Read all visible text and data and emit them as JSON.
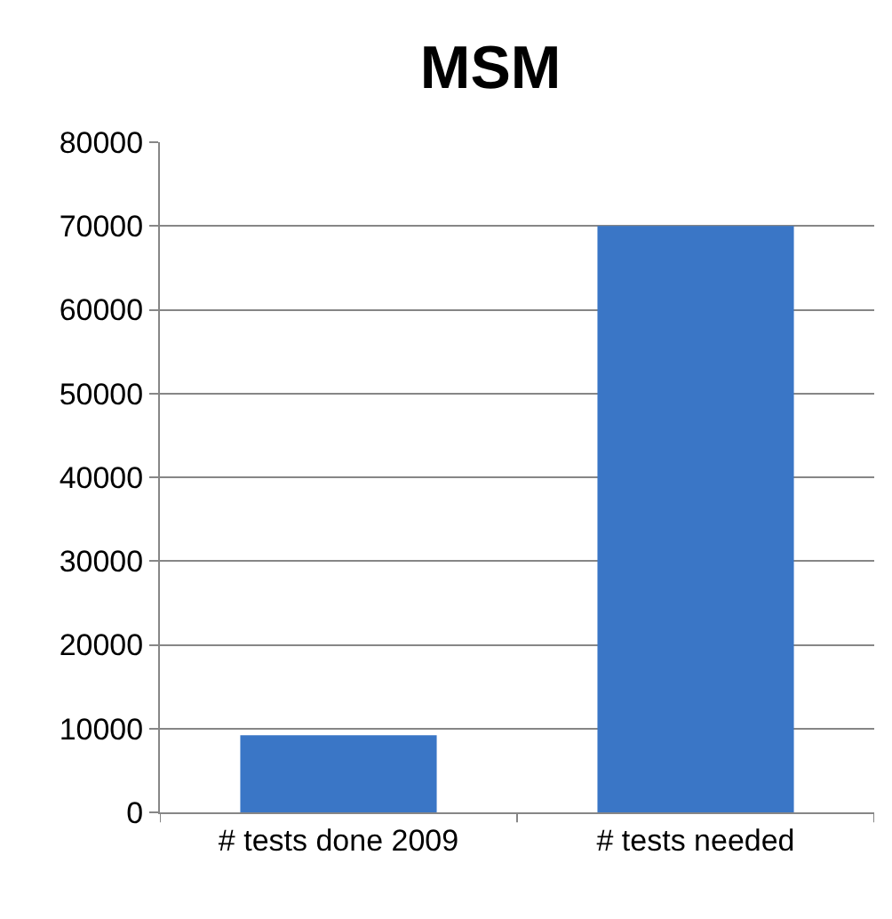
{
  "chart_data": {
    "type": "bar",
    "title": "MSM",
    "categories": [
      "# tests done 2009",
      "# tests needed"
    ],
    "values": [
      9200,
      70000
    ],
    "color": "#3a76c6",
    "ylim": [
      0,
      80000
    ],
    "yticks": [
      0,
      10000,
      20000,
      30000,
      40000,
      50000,
      60000,
      70000,
      80000
    ],
    "grid": "y"
  }
}
